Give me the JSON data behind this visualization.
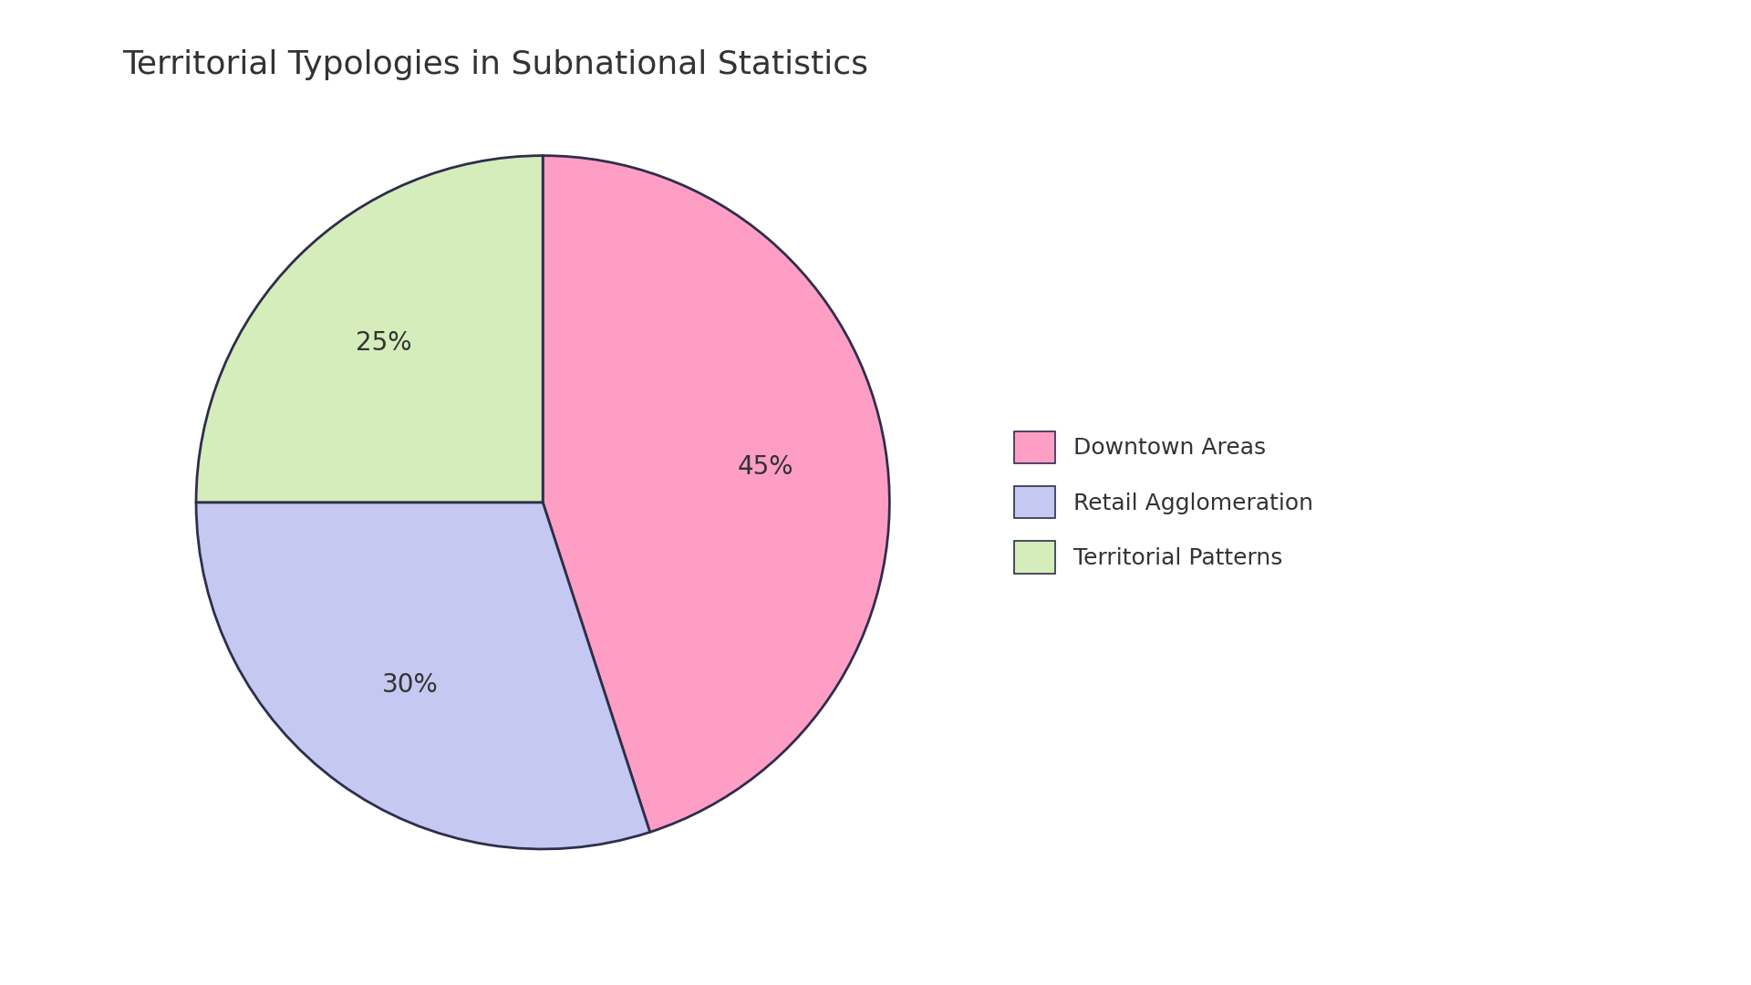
{
  "title": "Territorial Typologies in Subnational Statistics",
  "labels": [
    "Downtown Areas",
    "Retail Agglomeration",
    "Territorial Patterns"
  ],
  "values": [
    45,
    30,
    25
  ],
  "colors": [
    "#FF9EC4",
    "#C5C8F0",
    "#D4EDBB"
  ],
  "edge_color": "#2E2D4D",
  "edge_width": 2.0,
  "title_fontsize": 26,
  "autopct_fontsize": 20,
  "legend_fontsize": 18,
  "start_angle": 90,
  "background_color": "#FFFFFF",
  "text_color": "#333333"
}
